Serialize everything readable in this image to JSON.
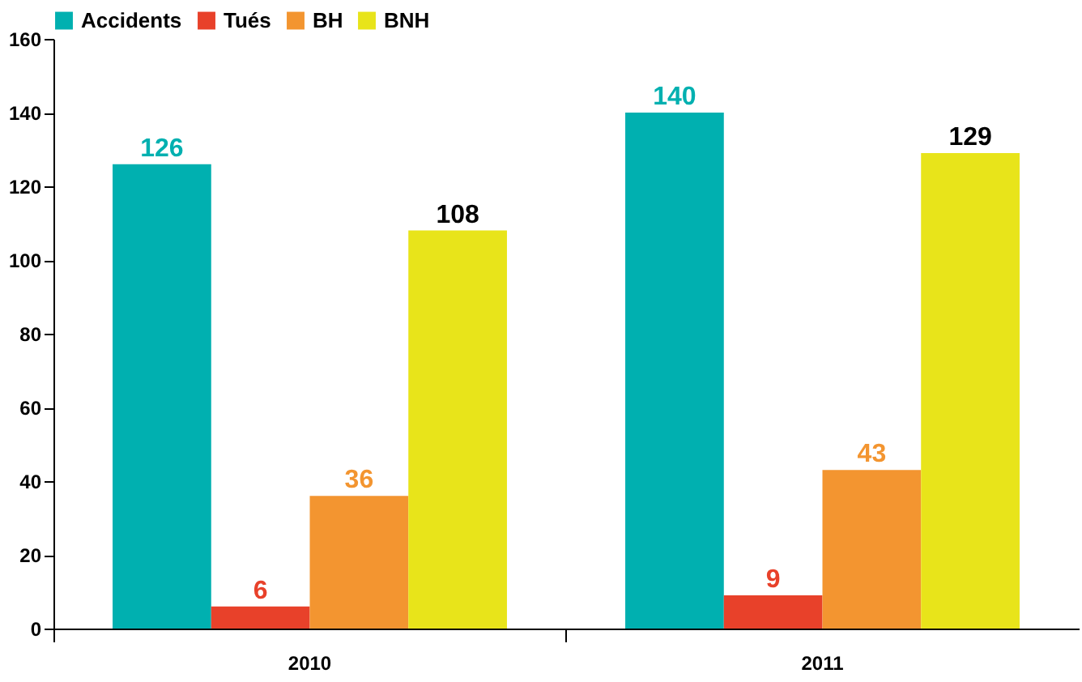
{
  "chart_data": {
    "type": "bar",
    "categories": [
      "2010",
      "2011"
    ],
    "series": [
      {
        "name": "Accidents",
        "color": "#00b0b0",
        "values": [
          126,
          140
        ]
      },
      {
        "name": "Tués",
        "color": "#e8412a",
        "values": [
          6,
          9
        ]
      },
      {
        "name": "BH",
        "color": "#f39530",
        "values": [
          36,
          43
        ]
      },
      {
        "name": "BNH",
        "color": "#e8e41a",
        "values": [
          108,
          129
        ]
      }
    ],
    "ylim": [
      0,
      160
    ],
    "yticks": [
      0,
      20,
      40,
      60,
      80,
      100,
      120,
      140,
      160
    ],
    "grid": false,
    "legend": "top",
    "data_labels": true
  }
}
